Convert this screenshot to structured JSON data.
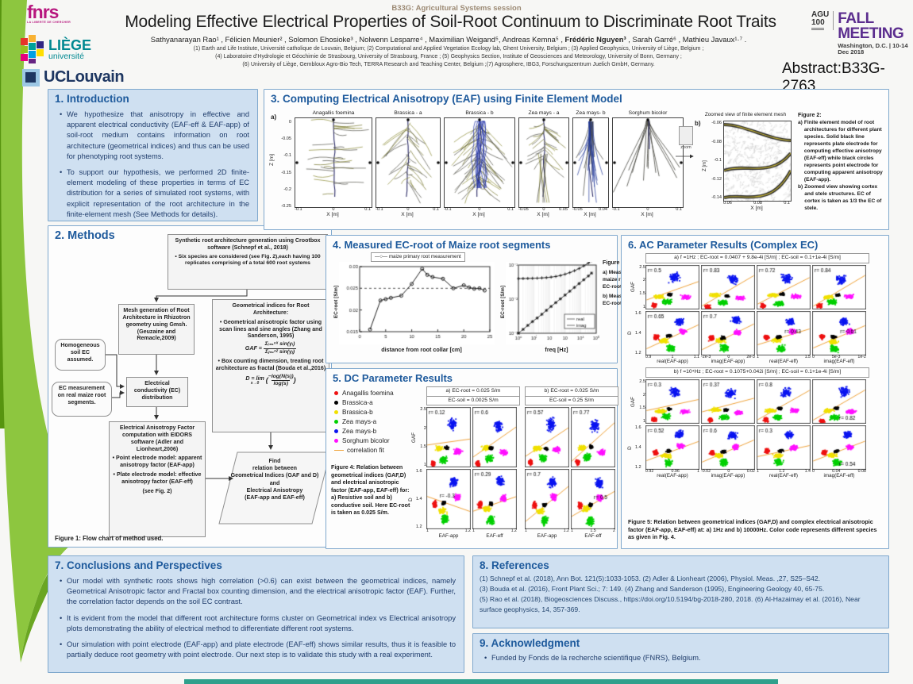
{
  "header": {
    "session": "B33G: Agricultural Systems session",
    "title": "Modeling Effective Electrical Properties of Soil-Root Continuum to Discriminate Root Traits",
    "authors_pre": "Sathyanarayan Rao¹ , Félicien Meunier² , Solomon Ehosioke³ , Nolwenn Lesparre⁴ , Maximilian Weigand⁵, Andreas Kemna⁵ , ",
    "author_bold": "Frédéric Nguyen³",
    "authors_post": " , Sarah Garré⁶ , Mathieu Javaux¹·⁷ .",
    "affil1": "(1) Earth and Life Institute, Université catholique de Louvain, Belgium; (2)  Computational and Applied Vegetation Ecology lab, Ghent University, Belgium ; (3) Applied Geophysics, University of Liège, Belgium ;",
    "affil2": "(4) Laboratoire d’Hydrologie et Géochimie de Strasbourg, University of Strasbourg, France ; (5) Geophysics Section, Institute of Geosciences and Meteorology, University of Bonn, Germany ;",
    "affil3": "(6)  University of Liège, Gembloux Agro-Bio Tech, TERRA Research and Teaching Center, Belgium ;(7) Agrosphere, IBG3, Forschungszentrum Juelich GmbH, Germany.",
    "abstract_label": "Abstract:B33G-2763",
    "logos": {
      "fnrs": "fnrs",
      "fnrs_sub": "LA LIBERTÉ DE CHERCHER",
      "liege": "LIÈGE",
      "liege_sub": "université",
      "uclouvain": "UCLouvain",
      "agu1": "AGU",
      "agu2": "100",
      "fall": "FALL MEETING",
      "fall_sub": "Washington, D.C.  | 10-14 Dec 2018"
    }
  },
  "colors": {
    "accent_blue": "#1e5a9c",
    "box_fill": "#cfe0f1",
    "box_border": "#7fa8cd",
    "fall_purple": "#5b2d8e",
    "green_band": "#8dc63f",
    "fit_orange": "#f0a43c",
    "teal_bar": "#2fa08c"
  },
  "sections": {
    "s1": {
      "title": "1. Introduction",
      "bullets": [
        "We hypothesize that anisotropy in effective and apparent electrical conductivity (EAF-eff & EAF-app) of soil-root medium contains information on root architecture (geometrical indices) and thus can be used for phenotyping root systems.",
        "To support our hypothesis, we performed 2D finite-element modeling of these properties in terms of EC distribution for a series of simulated root systems, with explicit representation of the root architecture in the finite-element mesh (See Methods for details)."
      ]
    },
    "s2": {
      "title": "2. Methods",
      "fig1": "Figure 1: Flow chart of method used.",
      "flow": {
        "syn": "Synthetic root architecture generation using Crootbox software (Schnepf et al., 2018)",
        "syn_b": "•  Six species are considered (see Fig. 2),each having 100 replicates comprising of a total  600 root systems",
        "mesh": "Mesh generation of Root Architecture in Rhizotron geometry using Gmsh. (Geuzaine and Remacle,2009)",
        "homog": "Homogeneous soil EC assumed.",
        "ecmeas": "EC measurement on real maize root segments.",
        "ecdist": "Electrical conductivity (EC) distribution",
        "eaf": "Electrical Anisotropy Factor computation with EIDORS software (Adler and Lionheart,2006)",
        "eaf_b1": "•  Point electrode model: apparent anisotropy factor (EAF-app)",
        "eaf_b2": "•  Plate electrode model: effective anisotropy factor (EAF-eff)",
        "eaf_note": "(see Fig. 2)",
        "geo_title": "Geometrical indices for Root Architecture:",
        "geo_b1": "•  Geometrical anisotropic factor using scan lines and sine angles (Zhang and Sanderson, 1995)",
        "gaf_lhs": "GAF  =",
        "gaf_num": "Σᵢ₌₁ⁿˣ sin(γᵢ)",
        "gaf_den": "Σⱼ₌₁ⁿᶻ sin(γⱼ)",
        "geo_b2": "•  Box counting dimension, treating root architecture as fractal (Bouda et al.,2016)",
        "d_lhs": "D  =  lim",
        "d_lim": "s→0",
        "d_num": "−log(N(s))",
        "d_den": "log(s)",
        "find": "Find\nrelation between\nGeometrical Indices (GAF and D)\nand\nElectrical Anisotropy\n(EAF-app and EAF-eff)"
      }
    },
    "s3": {
      "title": "3. Computing Electrical Anisotropy (EAF) using Finite Element Model",
      "a_label": "a)",
      "b_label": "b)",
      "zoom_label": "zoom",
      "zlabel": "Z [m]",
      "xlabel": "X [m]",
      "yticks": [
        "0",
        "-0.05",
        "-0.1",
        "-0.15",
        "-0.2",
        "-0.25"
      ],
      "panels": [
        {
          "name": "Anagallis foemina",
          "kind": "layered",
          "xticks": [
            "-0.1",
            "0",
            "0.1"
          ]
        },
        {
          "name": "Brassica - a",
          "kind": "tap",
          "xticks": [
            "-0.1",
            "0",
            "0.1"
          ]
        },
        {
          "name": "Brassica - b",
          "kind": "dense",
          "xticks": [
            "-0.1",
            "0",
            "0.1"
          ]
        },
        {
          "name": "Zea mays - a",
          "kind": "bushy",
          "xticks": [
            "-0.05",
            "0",
            "0.05"
          ]
        },
        {
          "name": "Zea mays- b",
          "kind": "narrow",
          "xticks": [
            "-0.05",
            "0.04"
          ]
        },
        {
          "name": "Sorghum bicolor",
          "kind": "sorghum",
          "xticks": [
            "-0.1",
            "0",
            "0.1"
          ]
        }
      ],
      "mesh": {
        "title": "Zoomed view of finite element mesh",
        "ylabel": "Z [m]",
        "xlabel": "X [m]",
        "yticks": [
          "-0.06",
          "-0.08",
          "-0.1",
          "-0.12",
          "-0.14"
        ],
        "xticks": [
          "0.06",
          "0.08",
          "0.1"
        ]
      },
      "fig2": {
        "head": "Figure 2:",
        "a": "a)",
        "a_text": "Finite element model of root architectures for different plant species. Solid black line represents plate electrode for computing effective anisotropy (EAF-eff) while black circles represents point electrode for computing apparent anisotropy (EAF-app).",
        "b": "b)",
        "b_text": "Zoomed view showing cortex and stele structures. EC of cortex is taken as 1/3 the EC of stele."
      }
    },
    "s4": {
      "title": "4. Measured EC-root of Maize root segments",
      "legend_marker": "—○—",
      "legend": "maize primary root measurement",
      "a_label": "a)",
      "b_label": "b)",
      "a_ylabel": "EC-root [S/m]",
      "a_xlabel": "distance from root collar [cm]",
      "b_ylabel": "EC-root [S/m]",
      "b_xlabel": "freq [Hz]",
      "spec_legend": [
        "real",
        "imag"
      ],
      "fig3": {
        "head": "Figure 3:",
        "items": [
          "a)  Measured maize root DC EC-root.",
          "b)  Measured AC EC-root spectra."
        ]
      }
    },
    "s5": {
      "title": "5. DC Parameter Results",
      "legend": [
        {
          "label": "Anagallis foemina",
          "color": "#ee1111"
        },
        {
          "label": "Brassica-a",
          "color": "#000000"
        },
        {
          "label": "Brassica-b",
          "color": "#f0e000"
        },
        {
          "label": "Zea mays-a",
          "color": "#00d000"
        },
        {
          "label": "Zea mays-b",
          "color": "#0a14f0"
        },
        {
          "label": "Sorghum bicolor",
          "color": "#ff10ff"
        }
      ],
      "fit_label": "correlation fit",
      "fig4": "Figure 4: Relation between geometrical indices (GAF,D) and electrical anisotropic factor (EAF-app, EAF-eff) for: a) Resistive soil and b) conductive soil. Here EC-root is taken as 0.025 S/m.",
      "rows": [
        {
          "ylabel": "GAF",
          "yticks": [
            "2.5",
            "2",
            "1.5",
            "1"
          ]
        },
        {
          "ylabel": "D",
          "yticks": [
            "1.6",
            "1.4",
            "1.2"
          ]
        }
      ],
      "groups": [
        {
          "header1": "a) EC-root = 0.025 S/m",
          "header2": "EC-soil = 0.0025 S/m",
          "cols": [
            {
              "xlabel": "EAF-app",
              "xticks": [
                "1",
                "1.2"
              ]
            },
            {
              "xlabel": "EAF-eff",
              "xticks": [
                "1",
                "1.2"
              ]
            }
          ],
          "panels": [
            [
              {
                "r": "r= 0.12",
                "pos": "tl"
              },
              {
                "r": "r= 0.6",
                "pos": "tl"
              }
            ],
            [
              {
                "r": "r= -0.3",
                "pos": "mid"
              },
              {
                "r": "r= 0.29",
                "pos": "tl"
              }
            ]
          ]
        },
        {
          "header1": "b) EC-root = 0.025 S/m",
          "header2": "EC-soil = 0.25 S/m",
          "cols": [
            {
              "xlabel": "EAF-app",
              "xticks": [
                "1",
                "1.2"
              ]
            },
            {
              "xlabel": "EAF-eff",
              "xticks": [
                "1",
                "1.5",
                "2"
              ]
            }
          ],
          "panels": [
            [
              {
                "r": "r= 0.57",
                "pos": "tl"
              },
              {
                "r": "r= 0.77",
                "pos": "tl"
              }
            ],
            [
              {
                "r": "r= 0.7",
                "pos": "tl"
              },
              {
                "r": "r= 0.5",
                "pos": "mr"
              }
            ]
          ]
        }
      ]
    },
    "s6": {
      "title": "6. AC Parameter Results (Complex EC)",
      "rows": [
        {
          "ylabel": "GAF",
          "yticks": [
            "2.5",
            "2",
            "1.5",
            "1"
          ]
        },
        {
          "ylabel": "D",
          "yticks": [
            "1.6",
            "1.4",
            "1.2"
          ]
        }
      ],
      "groups": [
        {
          "header": "a) f =1Hz ; EC-root = 0.0407 + 9.8e-4i [S/m] ; EC-soil = 0.1+1e-4i [S/m]",
          "cols": [
            {
              "xlabel": "real(EAF-app)",
              "xticks": [
                "0.9",
                "1",
                "1.1"
              ]
            },
            {
              "xlabel": "imag(EAF-app)",
              "xticks": [
                "-2e-3",
                "0",
                "2e-3"
              ]
            },
            {
              "xlabel": "real(EAF-eff)",
              "xticks": [
                "1",
                "1.5"
              ]
            },
            {
              "xlabel": "imag(EAF-eff)",
              "xticks": [
                "0",
                "5e-3",
                "1e-2"
              ]
            }
          ],
          "panels": [
            [
              {
                "r": "r= 0.5",
                "pos": "tl"
              },
              {
                "r": "r= 0.83",
                "pos": "tl"
              },
              {
                "r": "r= 0.72",
                "pos": "tl"
              },
              {
                "r": "r= 0.84",
                "pos": "tl"
              }
            ],
            [
              {
                "r": "r= 0.65",
                "pos": "tl"
              },
              {
                "r": "r= 0.7",
                "pos": "tl"
              },
              {
                "r": "r= 0.43",
                "pos": "mr"
              },
              {
                "r": "r= 0.61",
                "pos": "mr"
              }
            ]
          ]
        },
        {
          "header": "b) f =10⁴Hz ; EC-root = 0.1075+0.042i [S/m] ; EC-soil = 0.1+1e-4i [S/m]",
          "cols": [
            {
              "xlabel": "real(EAF-app)",
              "xticks": [
                "0.92",
                "0.96",
                "1"
              ]
            },
            {
              "xlabel": "imag(EAF-app)",
              "xticks": [
                "-0.02",
                "0",
                "0.02"
              ]
            },
            {
              "xlabel": "real(EAF-eff)",
              "xticks": [
                "1",
                "1.2",
                "1.4"
              ]
            },
            {
              "xlabel": "imag(EAF-eff)",
              "xticks": [
                "0",
                "0.04",
                "0.08"
              ]
            }
          ],
          "panels": [
            [
              {
                "r": "r= 0.3",
                "pos": "tl"
              },
              {
                "r": "r= 0.37",
                "pos": "tl"
              },
              {
                "r": "r= 0.8",
                "pos": "tl"
              },
              {
                "r": "r= 0.82",
                "pos": "br"
              }
            ],
            [
              {
                "r": "r= 0.52",
                "pos": "tl"
              },
              {
                "r": "r= 0.6",
                "pos": "tl"
              },
              {
                "r": "r= 0.3",
                "pos": "tl"
              },
              {
                "r": "r= 0.54",
                "pos": "br"
              }
            ]
          ]
        }
      ],
      "fig5": "Figure 5: Relation between geometrical indices (GAF,D) and complex electrical anisotropic factor (EAF-app, EAF-eff) at: a) 1Hz and b) 10000Hz. Color code represents different species as given in Fig. 4."
    },
    "s7": {
      "title": "7. Conclusions and Perspectives",
      "bullets": [
        "Our model with synthetic roots shows high correlation (>0.6) can exist between the geometrical indices, namely Geometrical Anisotropic factor and Fractal box counting dimension, and the electrical anisotropic factor (EAF). Further, the correlation factor depends on the soil EC contrast.",
        "It is evident from the model that different root architecture forms cluster on Geometrical index vs Electrical anisotropy plots demonstrating the ability of electrical method to differentiate different root systems.",
        "Our simulation with point electrode (EAF-app) and plate electrode (EAF-eff) shows similar results, thus it is feasible to   partially deduce root geometry with point electrode.  Our next step is to validate this study with a real experiment."
      ]
    },
    "s8": {
      "title": "8. References",
      "lines": [
        "(1) Schnepf et al. (2018), Ann Bot. 121(5):1033-1053. (2) Adler & Lionheart (2006), Physiol. Meas. ,27, S25–S42.",
        "(3) Bouda et al. (2016), Front Plant Sci.; 7: 149. (4) Zhang and Sanderson (1995), Engineering Geology 40, 65-75.",
        "(5) Rao et al. (2018), Biogeosciences Discuss., https://doi.org/10.5194/bg-2018-280, 2018. (6) Al-Hazaimay et al. (2016), Near surface geophysics, 14, 357-369."
      ]
    },
    "s9": {
      "title": "9. Acknowledgment",
      "bullets": [
        "Funded by Fonds de la recherche scientifique (FNRS), Belgium."
      ]
    }
  },
  "chart_data": [
    {
      "id": "fig3a",
      "type": "line",
      "xlabel": "distance from root collar [cm]",
      "ylabel": "EC-root [S/m]",
      "xlim": [
        0,
        25
      ],
      "ylim": [
        0.015,
        0.03
      ],
      "xticks": [
        0,
        5,
        10,
        15,
        20,
        25
      ],
      "yticks": [
        0.015,
        0.02,
        0.025,
        0.03
      ],
      "dashed_y": 0.025,
      "series_name": "maize primary root measurement",
      "x": [
        2,
        4,
        5,
        6,
        8,
        10,
        12,
        13,
        14,
        16,
        18,
        20,
        21,
        22,
        23,
        24
      ],
      "y": [
        0.0155,
        0.0222,
        0.0225,
        0.0228,
        0.0233,
        0.026,
        0.0295,
        0.0281,
        0.0276,
        0.0272,
        0.025,
        0.0257,
        0.0252,
        0.0249,
        0.025,
        0.0245
      ]
    },
    {
      "id": "fig3b",
      "type": "line",
      "log": true,
      "xlabel": "freq [Hz]",
      "ylabel": "EC-root [S/m]",
      "xlim_exp": [
        0,
        5
      ],
      "ylim_exp": [
        -3,
        -1
      ],
      "series": [
        {
          "name": "real",
          "x": [
            1,
            2,
            4,
            8,
            16,
            32,
            63,
            126,
            251,
            501,
            1000,
            2000,
            3981,
            7943,
            15849,
            31623,
            50119
          ],
          "y": [
            0.04,
            0.0402,
            0.0405,
            0.0408,
            0.0412,
            0.0418,
            0.0428,
            0.0442,
            0.0462,
            0.0492,
            0.054,
            0.06,
            0.068,
            0.079,
            0.094,
            0.115,
            0.135
          ]
        },
        {
          "name": "imag",
          "x": [
            1,
            2,
            4,
            8,
            16,
            32,
            63,
            126,
            251,
            501,
            1000,
            2000,
            3981,
            7943,
            15849,
            31623,
            50119
          ],
          "y": [
            0.001,
            0.0013,
            0.0017,
            0.0022,
            0.0028,
            0.0036,
            0.0047,
            0.0061,
            0.0079,
            0.0102,
            0.0132,
            0.0171,
            0.0221,
            0.0286,
            0.037,
            0.0478,
            0.058
          ]
        }
      ]
    },
    {
      "id": "fig4",
      "type": "scatter",
      "note": "correlation r per panel, rows GAF/D, cols EAF-app,EAF-eff for a) resistive and b) conductive soil",
      "r_a": [
        [
          0.12,
          0.6
        ],
        [
          -0.3,
          0.29
        ]
      ],
      "r_b": [
        [
          0.57,
          0.77
        ],
        [
          0.7,
          0.5
        ]
      ]
    },
    {
      "id": "fig5",
      "type": "scatter",
      "note": "correlation r per panel, rows GAF/D, cols real/imag EAF-app, real/imag EAF-eff at 1Hz (a) and 10kHz (b)",
      "r_a": [
        [
          0.5,
          0.83,
          0.72,
          0.84
        ],
        [
          0.65,
          0.7,
          0.43,
          0.61
        ]
      ],
      "r_b": [
        [
          0.3,
          0.37,
          0.8,
          0.82
        ],
        [
          0.52,
          0.6,
          0.3,
          0.54
        ]
      ]
    }
  ]
}
